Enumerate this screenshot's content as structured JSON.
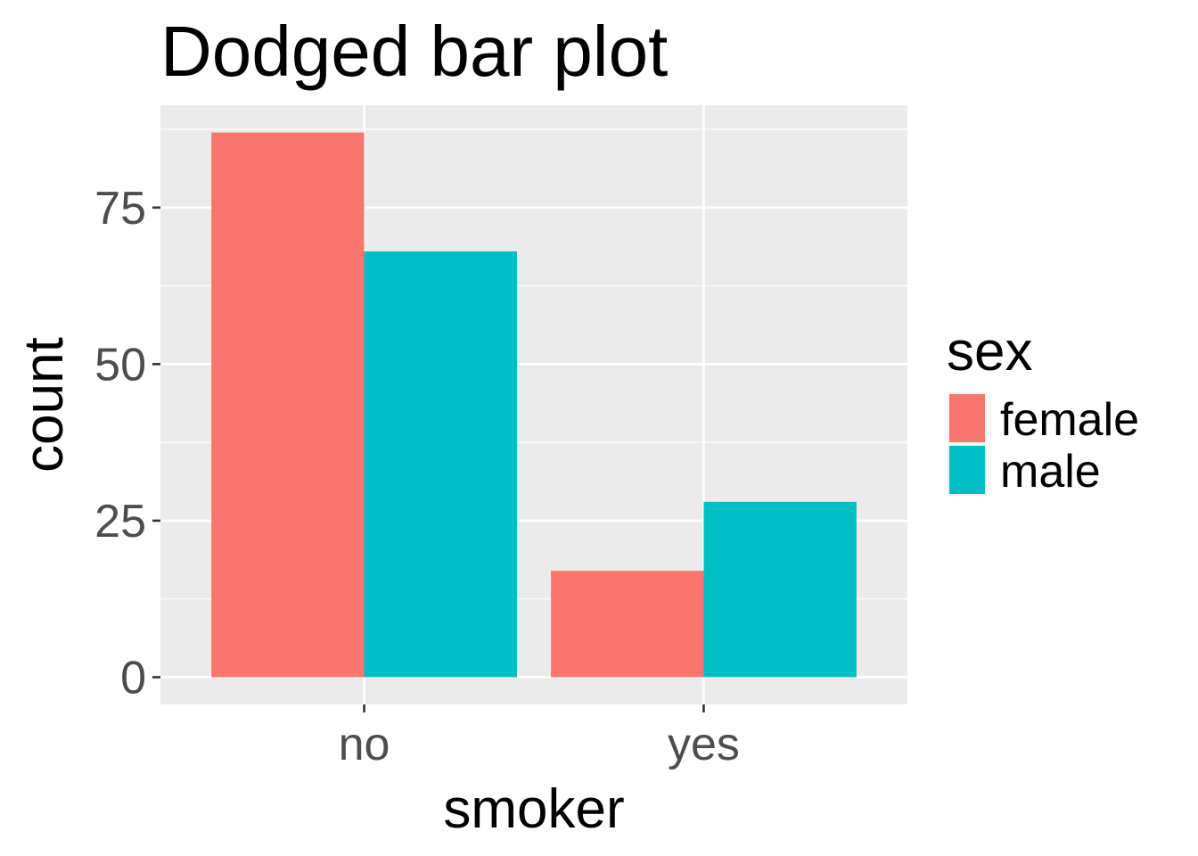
{
  "chart_data": {
    "type": "bar",
    "title": "Dodged bar plot",
    "xlabel": "smoker",
    "ylabel": "count",
    "categories": [
      "no",
      "yes"
    ],
    "series": [
      {
        "name": "female",
        "values": [
          87,
          17
        ],
        "color": "#F8766D"
      },
      {
        "name": "male",
        "values": [
          68,
          28
        ],
        "color": "#00BFC4"
      }
    ],
    "y_ticks": [
      0,
      25,
      50,
      75
    ],
    "ylim": [
      -4.35,
      91.35
    ],
    "grid": true,
    "panel_background": "#EBEBEB",
    "legend": {
      "title": "sex",
      "placement": "right"
    }
  }
}
